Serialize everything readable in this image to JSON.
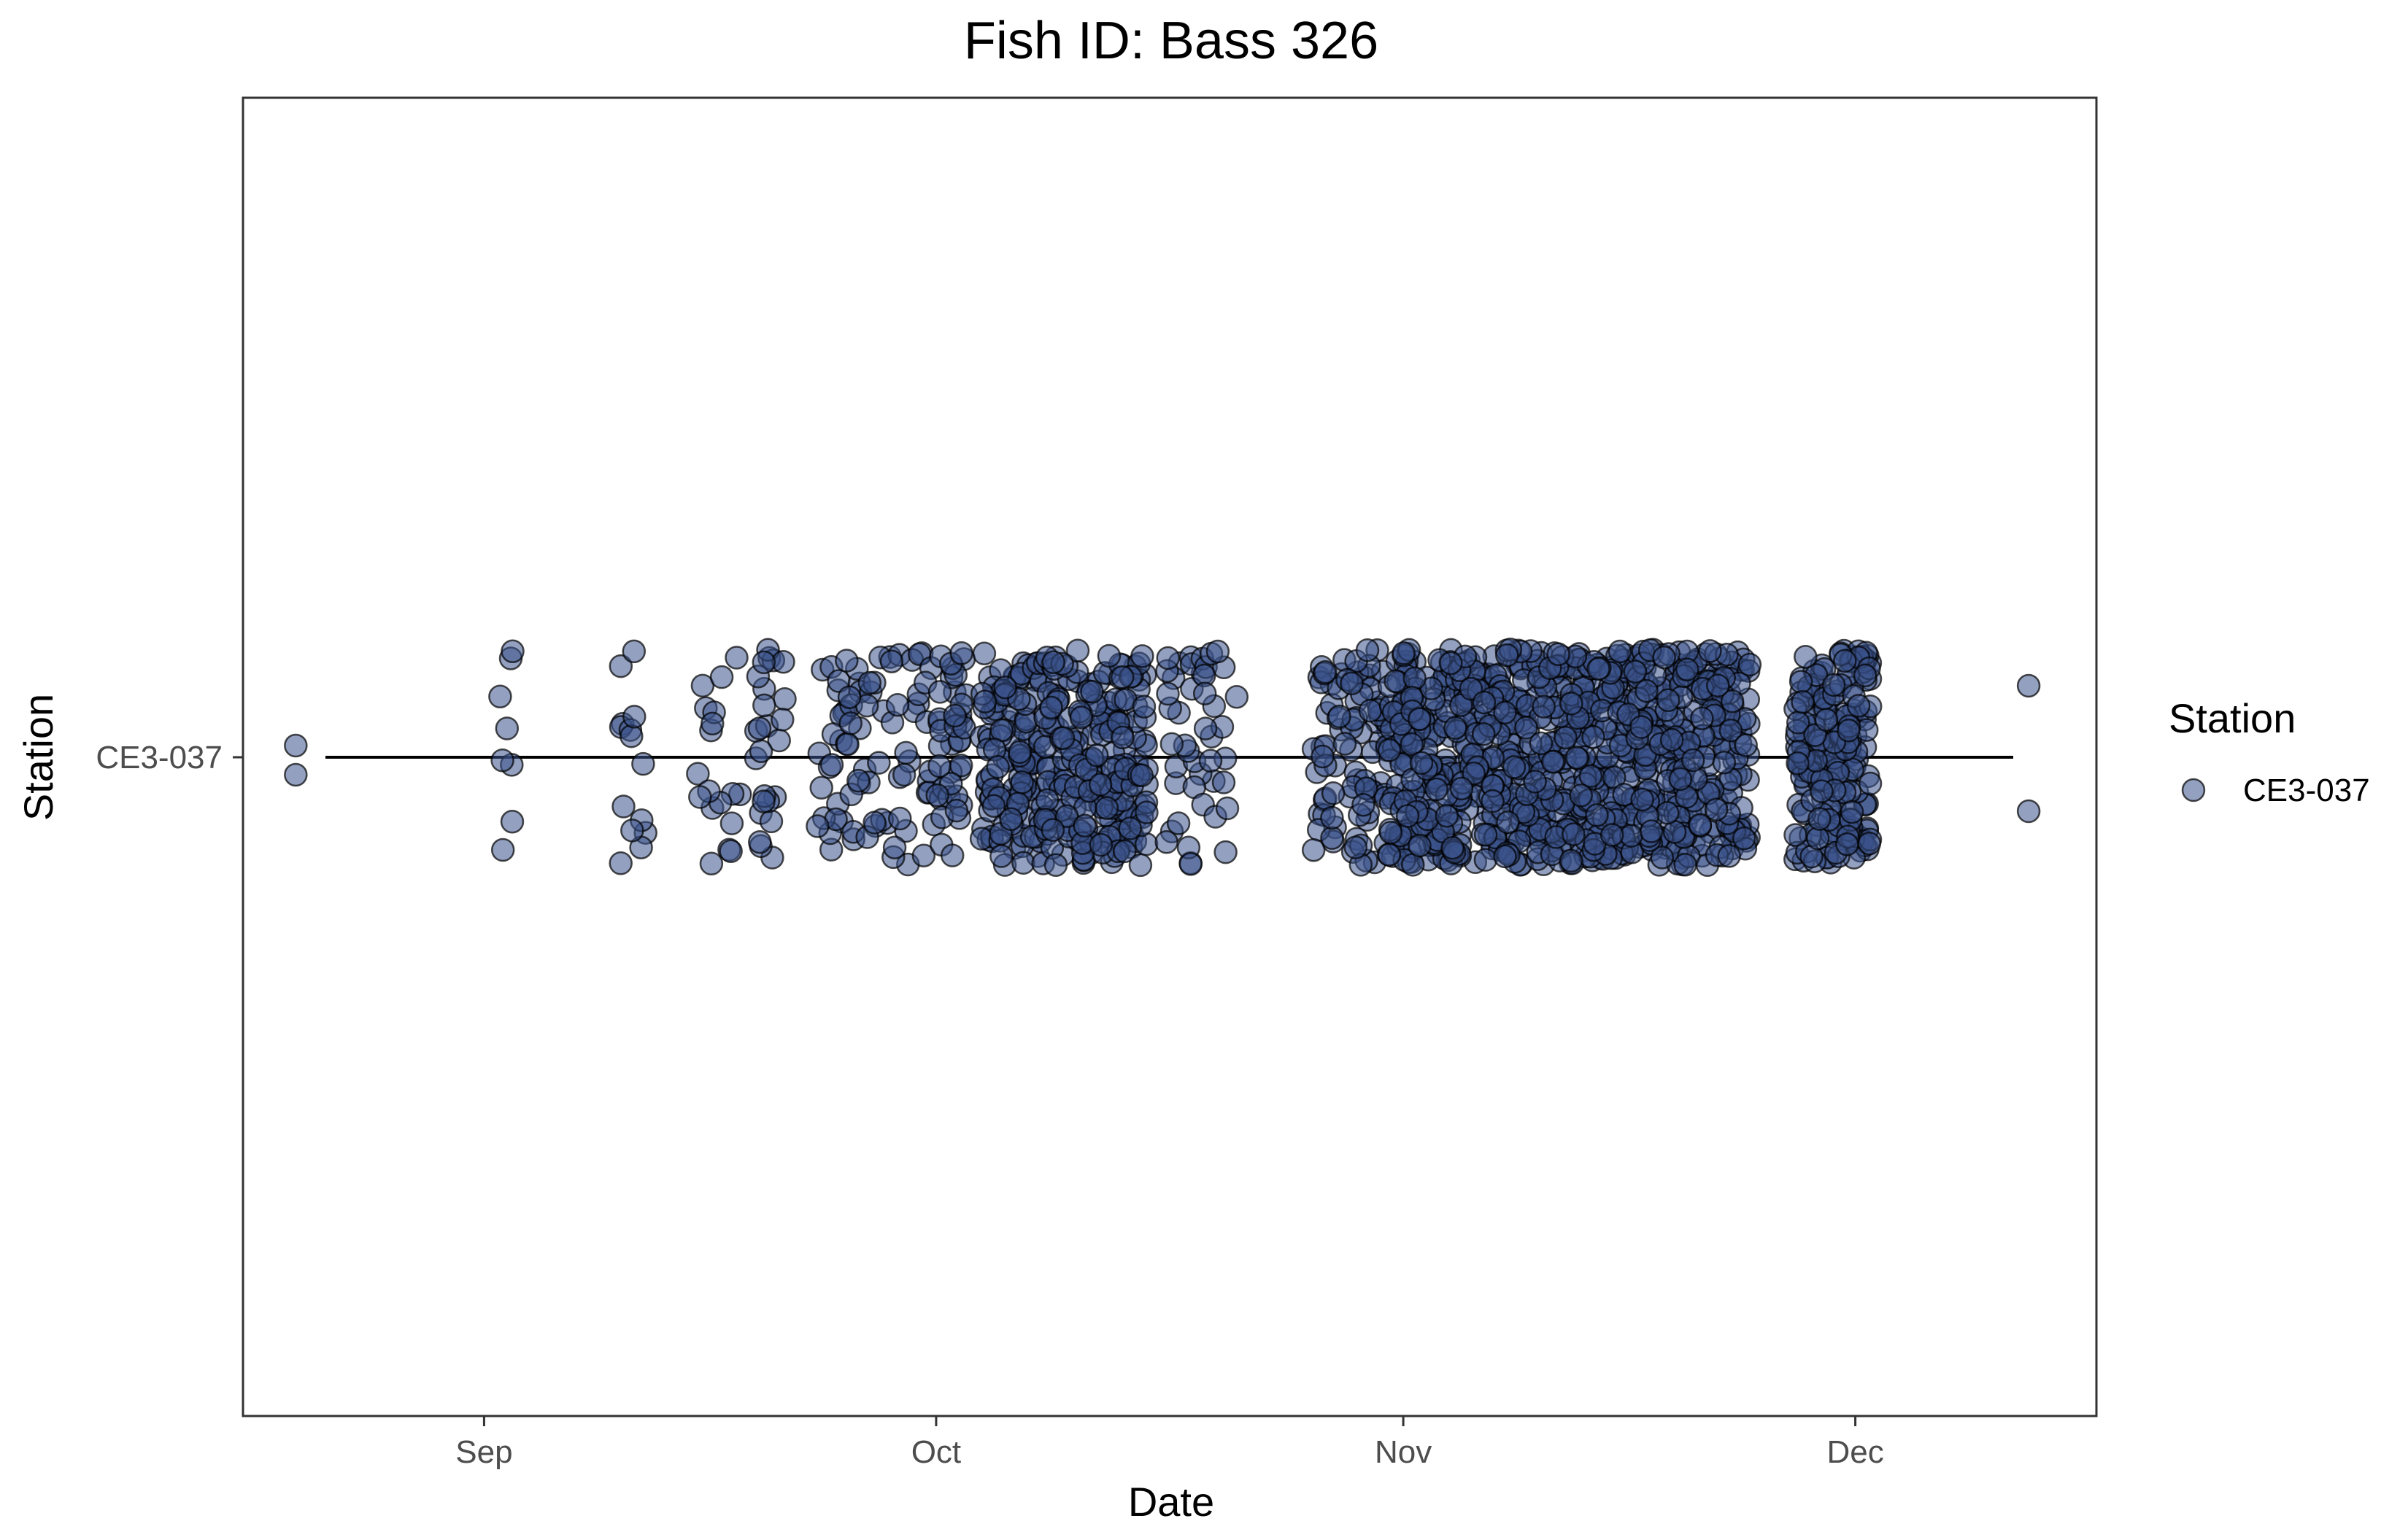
{
  "chart_data": {
    "type": "scatter",
    "title": "Fish ID: Bass 326",
    "xlabel": "Date",
    "ylabel": "Station",
    "x_axis": {
      "scale": "date",
      "range": [
        "2023-08-16",
        "2023-12-17"
      ],
      "ticks": [
        {
          "date": "2023-09-01",
          "label": "Sep"
        },
        {
          "date": "2023-10-01",
          "label": "Oct"
        },
        {
          "date": "2023-11-01",
          "label": "Nov"
        },
        {
          "date": "2023-12-01",
          "label": "Dec"
        }
      ]
    },
    "y_axis": {
      "categories": [
        "CE3-037"
      ]
    },
    "grid": false,
    "legend": {
      "title": "Station",
      "position": "right",
      "entries": [
        {
          "label": "CE3-037",
          "color": "#3b528b"
        }
      ]
    },
    "series": [
      {
        "name": "CE3-037",
        "color": "#3b528b",
        "station": "CE3-037",
        "jittered": true,
        "detection_dates": [
          {
            "start": "2023-08-19",
            "end": "2023-08-19",
            "density": 2
          },
          {
            "start": "2023-09-02",
            "end": "2023-09-02",
            "density": 8
          },
          {
            "start": "2023-09-10",
            "end": "2023-09-11",
            "density": 14
          },
          {
            "start": "2023-09-15",
            "end": "2023-09-17",
            "density": 18
          },
          {
            "start": "2023-09-19",
            "end": "2023-09-20",
            "density": 25
          },
          {
            "start": "2023-09-23",
            "end": "2023-09-24",
            "density": 20
          },
          {
            "start": "2023-09-25",
            "end": "2023-09-27",
            "density": 30
          },
          {
            "start": "2023-09-28",
            "end": "2023-09-30",
            "density": 28
          },
          {
            "start": "2023-10-01",
            "end": "2023-10-02",
            "density": 40
          },
          {
            "start": "2023-10-04",
            "end": "2023-10-07",
            "density": 120
          },
          {
            "start": "2023-10-08",
            "end": "2023-10-14",
            "density": 220
          },
          {
            "start": "2023-10-16",
            "end": "2023-10-20",
            "density": 45
          },
          {
            "start": "2023-10-26",
            "end": "2023-10-30",
            "density": 90
          },
          {
            "start": "2023-10-31",
            "end": "2023-11-23",
            "density": 900
          },
          {
            "start": "2023-11-27",
            "end": "2023-12-01",
            "density": 200
          },
          {
            "start": "2023-12-12",
            "end": "2023-12-12",
            "density": 2
          }
        ]
      }
    ]
  }
}
